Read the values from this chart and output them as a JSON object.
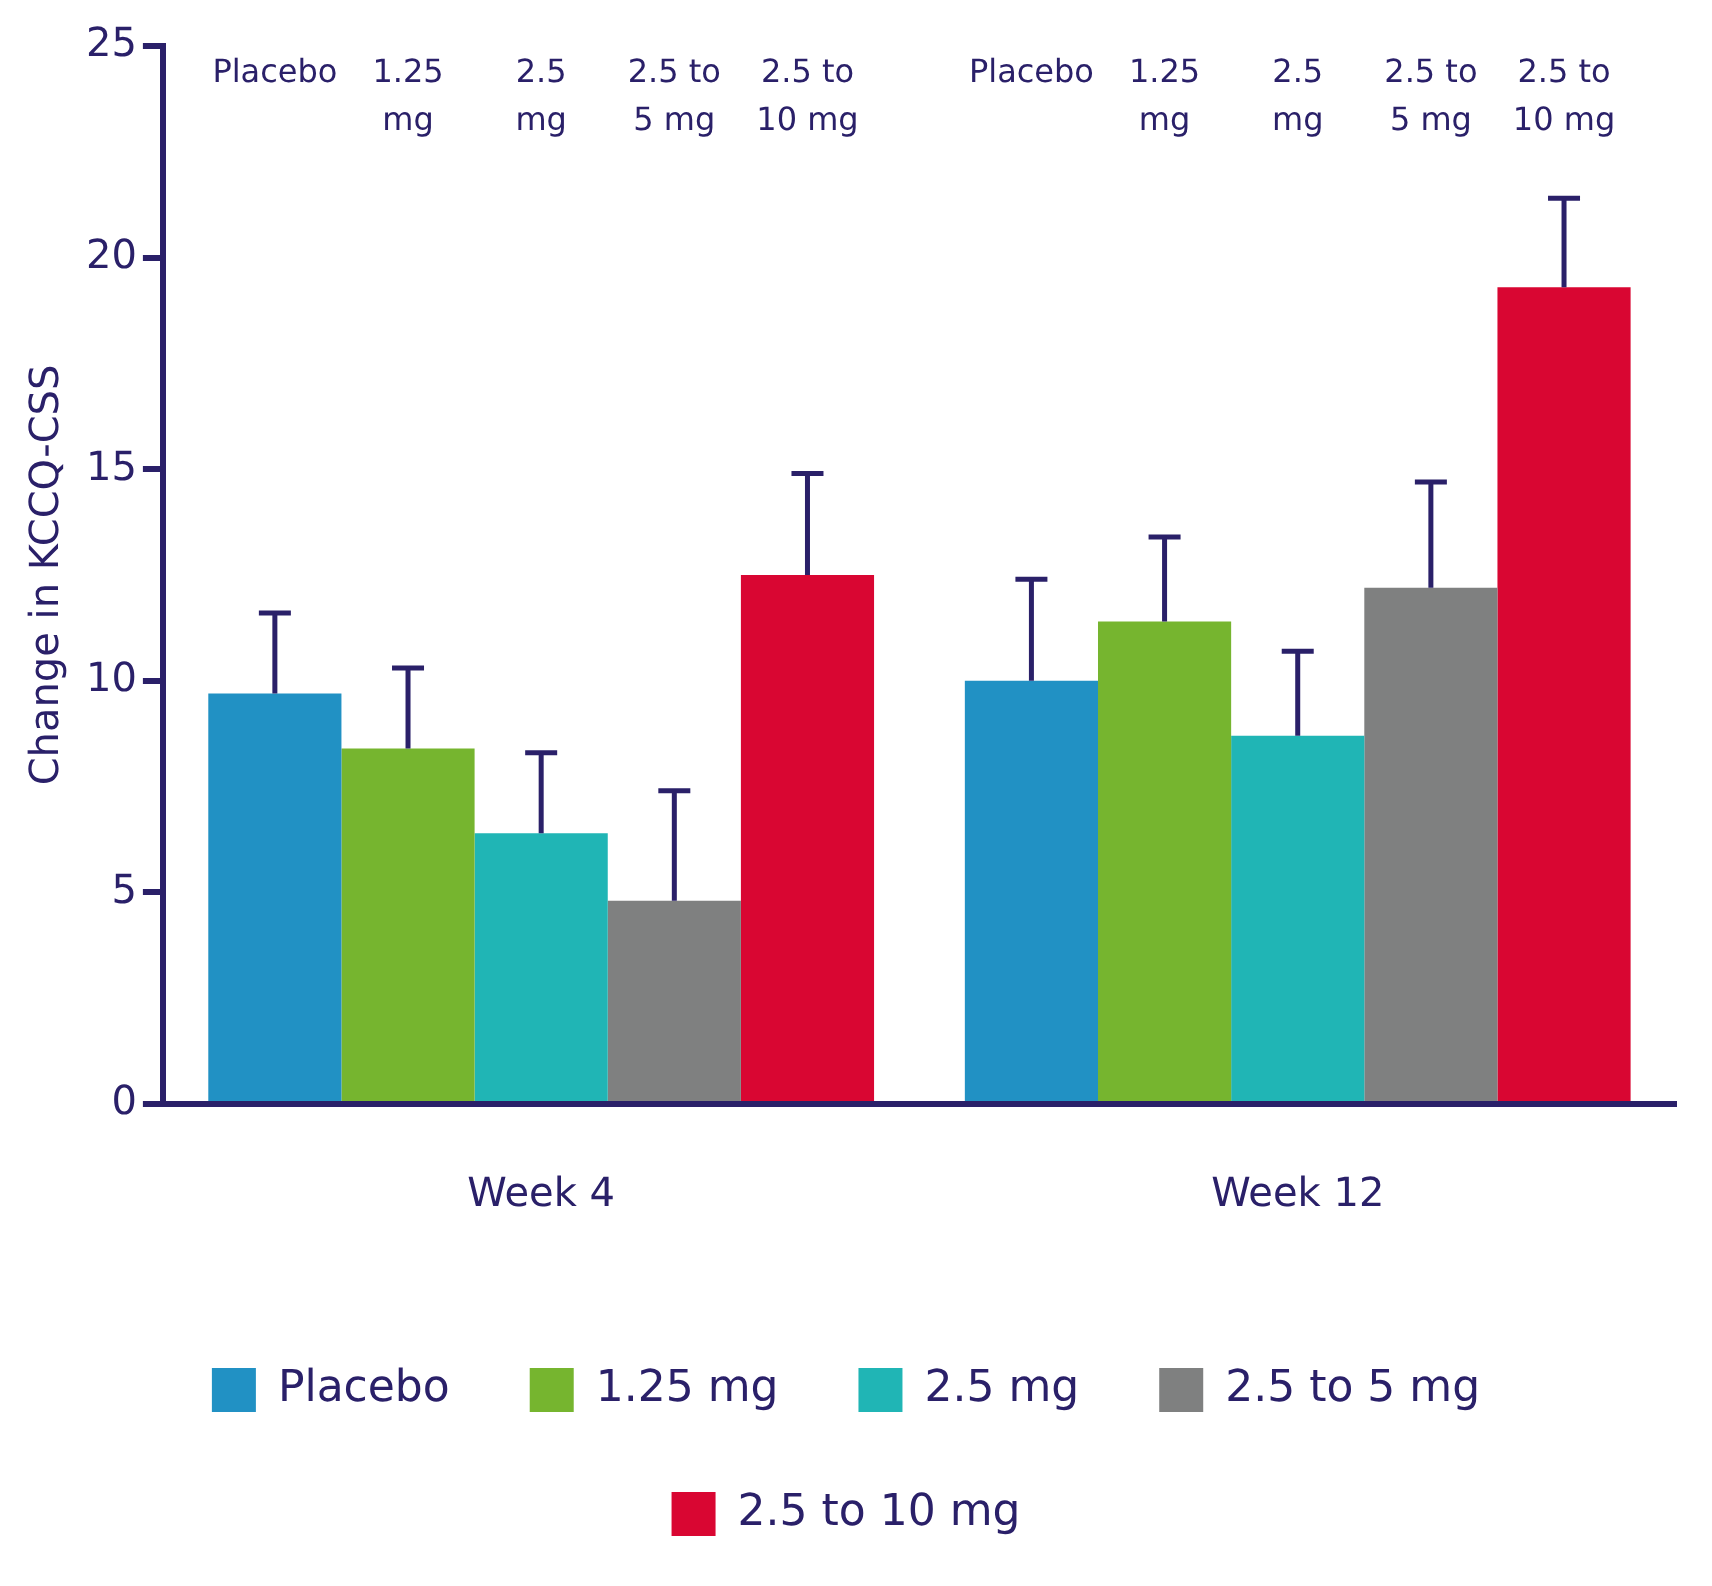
{
  "chart_data": {
    "type": "bar",
    "ylabel": "Change in KCCQ-CSS",
    "categories": [
      "Week 4",
      "Week 12"
    ],
    "series": [
      {
        "name": "Placebo",
        "color": "#2191c4",
        "values": [
          9.7,
          10.0
        ],
        "errors": [
          [
            9.7,
            11.6
          ],
          [
            10.0,
            12.4
          ]
        ]
      },
      {
        "name": "1.25 mg",
        "color": "#76b52f",
        "values": [
          8.4,
          11.4
        ],
        "errors": [
          [
            8.4,
            10.3
          ],
          [
            11.4,
            13.4
          ]
        ]
      },
      {
        "name": "2.5 mg",
        "color": "#20b5b5",
        "values": [
          6.4,
          8.7
        ],
        "errors": [
          [
            6.4,
            8.3
          ],
          [
            8.7,
            10.7
          ]
        ]
      },
      {
        "name": "2.5 to 5 mg",
        "color": "#7f8080",
        "values": [
          4.8,
          12.2
        ],
        "errors": [
          [
            4.8,
            7.4
          ],
          [
            12.2,
            14.7
          ]
        ]
      },
      {
        "name": "2.5 to 10 mg",
        "color": "#d90632",
        "values": [
          12.5,
          19.3
        ],
        "errors": [
          [
            12.5,
            14.9
          ],
          [
            19.3,
            21.4
          ]
        ]
      }
    ],
    "ylim": [
      0,
      25
    ],
    "yticks": [
      0,
      5,
      10,
      15,
      20,
      25
    ],
    "grid": false,
    "legend": "bottom"
  }
}
